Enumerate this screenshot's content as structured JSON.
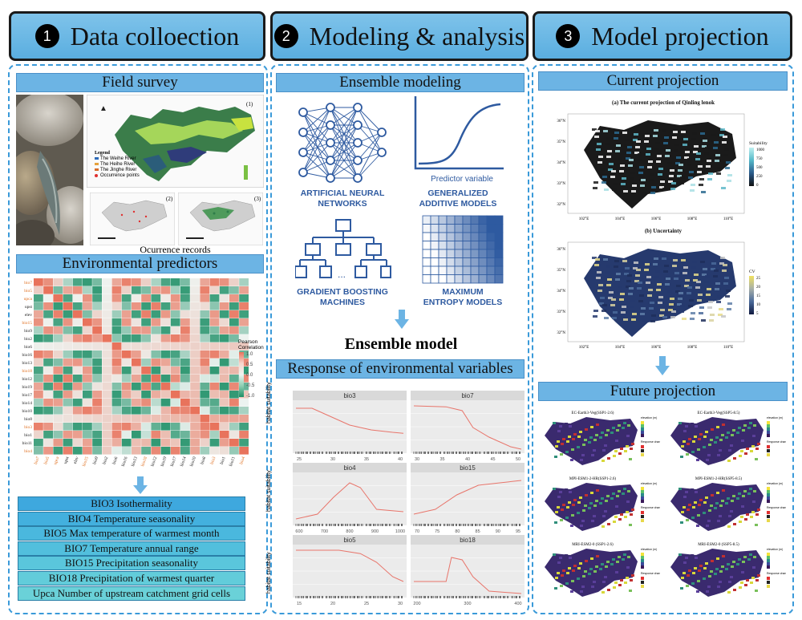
{
  "headers": [
    {
      "num": "1",
      "title": "Data colloection"
    },
    {
      "num": "2",
      "title": "Modeling & analysis"
    },
    {
      "num": "3",
      "title": "Model projection"
    }
  ],
  "col1": {
    "field_survey": "Field survey",
    "map_labels": {
      "m1": "(1)",
      "m2": "(2)",
      "m3": "(3)"
    },
    "legend_title": "Legend",
    "legend_items": [
      "The Weihe River",
      "The Heihe River",
      "The Jinghe River",
      "Occurrence points"
    ],
    "occurrence_label": "Ocurrence records",
    "env_predictors": "Environmental predictors",
    "corr_legend_title": "Pearson\nCorrelation",
    "corr_ticks": [
      "1.0",
      "0.5",
      "0.0",
      "-0.5",
      "-1.0"
    ],
    "corr_vars": [
      "bio7",
      "bio5",
      "upca",
      "upst",
      "elev",
      "bio15",
      "bio9",
      "bio2",
      "bio6",
      "bio16",
      "bio13",
      "bio18",
      "bio12",
      "bio19",
      "bio17",
      "bio14",
      "bio10",
      "bio8",
      "bio3",
      "bio1",
      "bio11",
      "bio4"
    ],
    "highlight_vars": [
      "bio7",
      "bio5",
      "upca",
      "bio15",
      "bio18",
      "bio3",
      "bio4"
    ],
    "selected_vars": [
      "BIO3 Isothermality",
      "BIO4 Temperature seasonality",
      "BIO5 Max temperature of warmest month",
      "BIO7 Temperature annual range",
      "BIO15 Precipitation seasonality",
      "BIO18 Precipitation of warmest quarter",
      "Upca Number of upstream catchment grid cells"
    ]
  },
  "col2": {
    "ensemble_modeling": "Ensemble modeling",
    "icons": [
      {
        "icon": "neural-network-icon",
        "label": "ARTIFICIAL NEURAL\nNETWORKS"
      },
      {
        "icon": "sigmoid-curve-icon",
        "label": "GENERALIZED\nADDITIVE MODELS"
      },
      {
        "icon": "tree-diagram-icon",
        "label": "GRADIENT BOOSTING\nMACHINES"
      },
      {
        "icon": "grid-gradient-icon",
        "label": "MAXIMUM\nENTROPY MODELS"
      }
    ],
    "predictor_label": "Predictor variable",
    "ensemble_model": "Ensemble model",
    "response_title": "Response of environmental variables",
    "ylabel": "habitat suitability",
    "facets": [
      {
        "name": "bio3",
        "ticks": [
          "25",
          "30",
          "35",
          "40"
        ]
      },
      {
        "name": "bio7",
        "ticks": [
          "30",
          "35",
          "40",
          "45",
          "50"
        ]
      },
      {
        "name": "bio4",
        "ticks": [
          "600",
          "700",
          "800",
          "900",
          "1000"
        ]
      },
      {
        "name": "bio15",
        "ticks": [
          "70",
          "75",
          "80",
          "85",
          "90",
          "95"
        ]
      },
      {
        "name": "bio5",
        "ticks": [
          "15",
          "20",
          "25",
          "30"
        ]
      },
      {
        "name": "bio18",
        "ticks": [
          "200",
          "300",
          "400"
        ]
      }
    ]
  },
  "col3": {
    "current_projection": "Current projection",
    "map_a_title": "(a) The current projection of Qinling lenok",
    "map_b_title": "(b) Uncertainty",
    "lat_ticks": [
      "36°N",
      "35°N",
      "34°N",
      "33°N",
      "32°N"
    ],
    "lon_ticks": [
      "102°E",
      "104°E",
      "106°E",
      "108°E",
      "110°E"
    ],
    "suitability_legend": {
      "title": "Suitability",
      "ticks": [
        "1000",
        "750",
        "500",
        "250",
        "0"
      ]
    },
    "cv_legend": {
      "title": "CV",
      "ticks": [
        "25",
        "20",
        "15",
        "10",
        "5"
      ]
    },
    "future_projection": "Future projection",
    "future_maps": [
      "EC-Earth3-Veg(SSP1-2.6)",
      "EC-Earth3-Veg(SSP5-8.5)",
      "MPI-ESM1-2-HR(SSP1-2.6)",
      "MPI-ESM1-2-HR(SSP5-8.5)",
      "MRI-ESM2-0 (SSP1-2.6)",
      "MRI-ESM2-0 (SSP5-8.5)"
    ],
    "future_legend_title": "elevation (m)",
    "future_change_title": "Response change"
  },
  "colors": {
    "header": "#6cb4e4",
    "accent": "#3a9ad9",
    "curve": "#e8756b",
    "icon": "#2e5aa0"
  }
}
